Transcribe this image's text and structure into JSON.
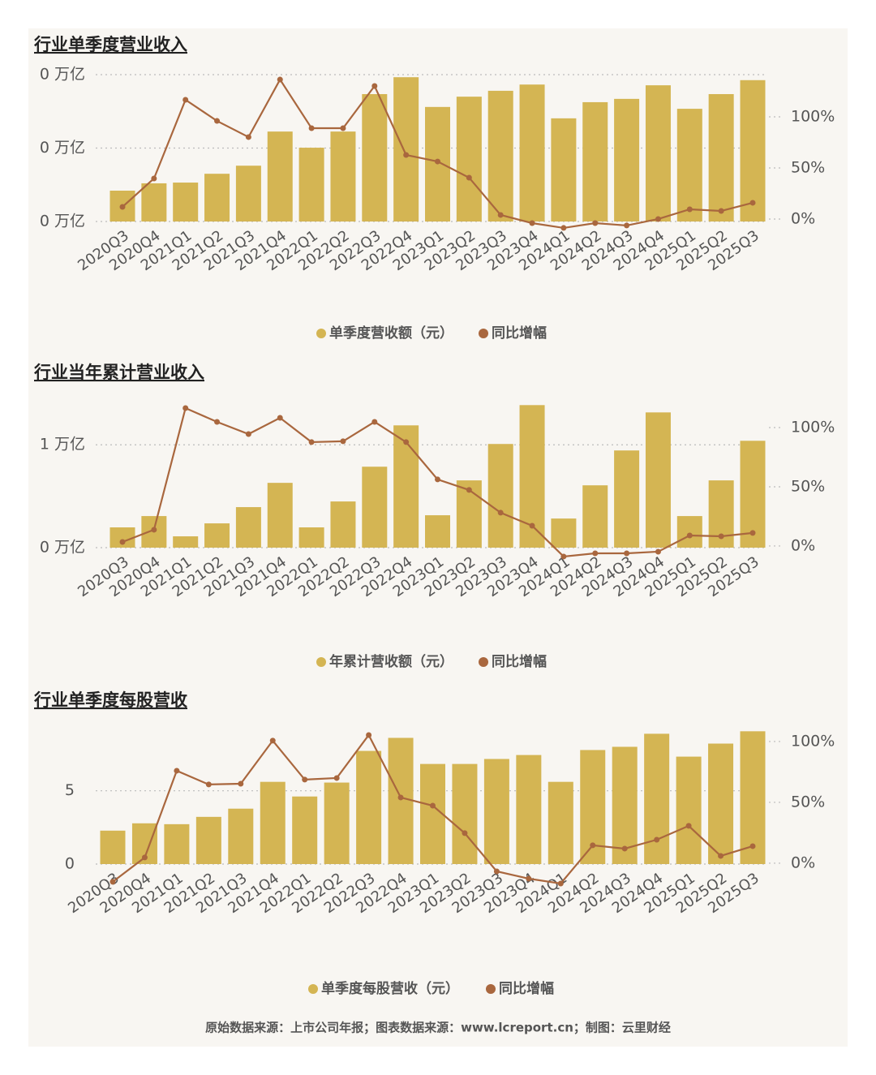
{
  "chart_data": [
    {
      "type": "combo",
      "title": "行业单季度营业收入",
      "categories": [
        "2020Q3",
        "2020Q4",
        "2021Q1",
        "2021Q2",
        "2021Q3",
        "2021Q4",
        "2022Q1",
        "2022Q2",
        "2022Q3",
        "2022Q4",
        "2023Q1",
        "2023Q2",
        "2023Q3",
        "2023Q4",
        "2024Q1",
        "2024Q2",
        "2024Q3",
        "2024Q4",
        "2025Q1",
        "2025Q2",
        "2025Q3"
      ],
      "series": [
        {
          "name": "单季度营收额（元）",
          "type": "bar",
          "color": "#d4b553",
          "axis": "y",
          "values": [
            0.084,
            0.104,
            0.106,
            0.13,
            0.152,
            0.245,
            0.201,
            0.245,
            0.347,
            0.393,
            0.312,
            0.34,
            0.356,
            0.373,
            0.281,
            0.325,
            0.334,
            0.371,
            0.307,
            0.347,
            0.385
          ]
        },
        {
          "name": "同比增幅",
          "type": "line",
          "color": "#a9673e",
          "axis": "y2",
          "values": [
            11.9,
            39.7,
            116.7,
            96,
            80.2,
            136.5,
            88.9,
            88.9,
            130.2,
            62.7,
            56.3,
            40.5,
            4,
            -4,
            -8.7,
            -4,
            -6.3,
            0,
            9.5,
            7.9,
            15.9
          ]
        }
      ],
      "ylim": [
        0,
        0.4
      ],
      "yticks": [
        {
          "value": 0,
          "label": "0 万亿"
        },
        {
          "value": 0.2,
          "label": "0 万亿"
        },
        {
          "value": 0.4,
          "label": "0 万亿"
        }
      ],
      "y2lim": [
        -2.4,
        141.3
      ],
      "y2ticks": [
        {
          "value": 0,
          "label": "0%"
        },
        {
          "value": 50,
          "label": "50%"
        },
        {
          "value": 100,
          "label": "100%"
        }
      ],
      "grid": true
    },
    {
      "type": "combo",
      "title": "行业当年累计营业收入",
      "categories": [
        "2020Q3",
        "2020Q4",
        "2021Q1",
        "2021Q2",
        "2021Q3",
        "2021Q4",
        "2022Q1",
        "2022Q2",
        "2022Q3",
        "2022Q4",
        "2023Q1",
        "2023Q2",
        "2023Q3",
        "2023Q4",
        "2024Q1",
        "2024Q2",
        "2024Q3",
        "2024Q4",
        "2025Q1",
        "2025Q2",
        "2025Q3"
      ],
      "series": [
        {
          "name": "年累计营收额（元）",
          "type": "bar",
          "color": "#d4b553",
          "axis": "y",
          "values": [
            0.197,
            0.307,
            0.11,
            0.236,
            0.394,
            0.63,
            0.197,
            0.449,
            0.787,
            1.189,
            0.315,
            0.654,
            1.008,
            1.386,
            0.283,
            0.606,
            0.945,
            1.315,
            0.307,
            0.654,
            1.039
          ]
        },
        {
          "name": "同比增幅",
          "type": "line",
          "color": "#a9673e",
          "axis": "y2",
          "values": [
            3.4,
            13.7,
            116.4,
            104.8,
            94.5,
            108.2,
            87.7,
            88.4,
            104.8,
            87.7,
            56.2,
            47.3,
            28.1,
            17.1,
            -8.9,
            -6.2,
            -6.2,
            -4.8,
            8.9,
            8.2,
            11.0
          ]
        }
      ],
      "ylim": [
        0,
        1.42
      ],
      "yticks": [
        {
          "value": 0,
          "label": "0 万亿"
        },
        {
          "value": 1,
          "label": "1 万亿"
        }
      ],
      "y2lim": [
        -1.4,
        121.9
      ],
      "y2ticks": [
        {
          "value": 0,
          "label": "0%"
        },
        {
          "value": 50,
          "label": "50%"
        },
        {
          "value": 100,
          "label": "100%"
        }
      ],
      "grid": true
    },
    {
      "type": "combo",
      "title": "行业单季度每股营收",
      "categories": [
        "2020Q3",
        "2020Q4",
        "2021Q1",
        "2021Q2",
        "2021Q3",
        "2021Q4",
        "2022Q1",
        "2022Q2",
        "2022Q3",
        "2022Q4",
        "2023Q1",
        "2023Q2",
        "2023Q3",
        "2023Q4",
        "2024Q1",
        "2024Q2",
        "2024Q3",
        "2024Q4",
        "2025Q1",
        "2025Q2",
        "2025Q3"
      ],
      "series": [
        {
          "name": "单季度每股营收（元）",
          "type": "bar",
          "color": "#d4b553",
          "axis": "y",
          "values": [
            2.28,
            2.78,
            2.72,
            3.22,
            3.78,
            5.61,
            4.61,
            5.56,
            7.72,
            8.61,
            6.83,
            6.83,
            7.17,
            7.44,
            5.61,
            7.78,
            8.0,
            8.89,
            7.33,
            8.22,
            9.06
          ]
        },
        {
          "name": "同比增幅",
          "type": "line",
          "color": "#a9673e",
          "axis": "y2",
          "values": [
            -15.3,
            4.7,
            76,
            64.7,
            65.3,
            100.7,
            68.7,
            70,
            105.3,
            54,
            47.3,
            24.7,
            -6.7,
            -12.7,
            -16.7,
            14.7,
            12,
            19.3,
            30.7,
            6,
            14
          ]
        }
      ],
      "ylim": [
        0,
        9.3
      ],
      "yticks": [
        0,
        5
      ],
      "y2lim": [
        -0.7,
        111.3
      ],
      "y2ticks": [
        {
          "value": 0,
          "label": "0%"
        },
        {
          "value": 50,
          "label": "50%"
        },
        {
          "value": 100,
          "label": "100%"
        }
      ],
      "grid": true
    }
  ],
  "footer": "原始数据来源：上市公司年报；图表数据来源：www.lcreport.cn；制图：云里财经"
}
